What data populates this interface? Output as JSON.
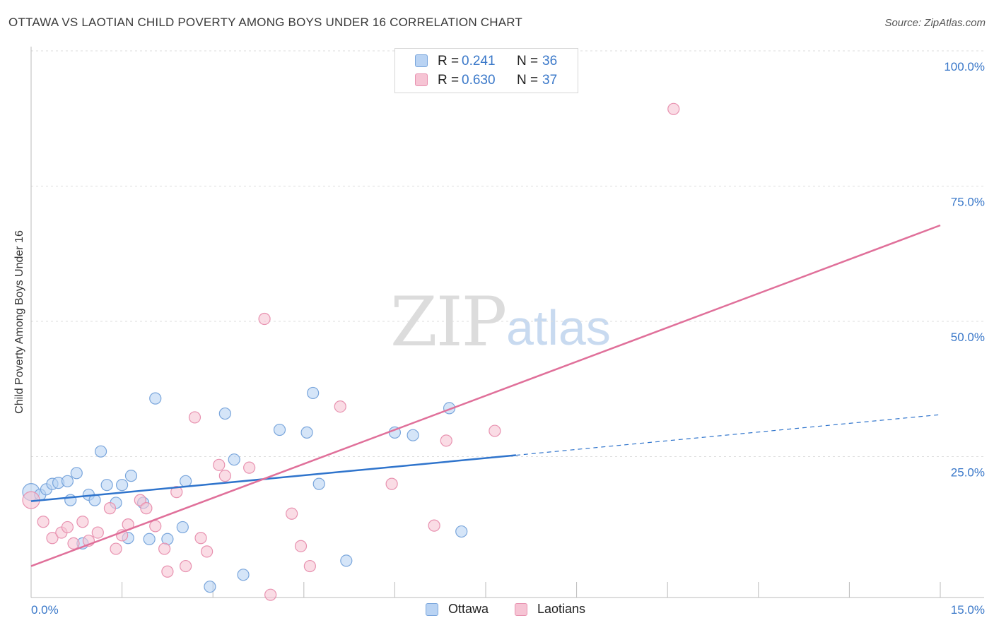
{
  "header": {
    "title": "OTTAWA VS LAOTIAN CHILD POVERTY AMONG BOYS UNDER 16 CORRELATION CHART",
    "source": "Source: ZipAtlas.com"
  },
  "watermark": {
    "zip": "ZIP",
    "atlas": "atlas"
  },
  "legend": {
    "r_label": "R =",
    "n_label": "N =",
    "ottawa": {
      "r": "0.241",
      "n": "36"
    },
    "laotians": {
      "r": "0.630",
      "n": "37"
    }
  },
  "colors": {
    "ottawa_fill": "#b9d3f3",
    "ottawa_stroke": "#7aa6dc",
    "ottawa_line": "#2f74cc",
    "laotians_fill": "#f6c4d4",
    "laotians_stroke": "#e892b0",
    "laotians_line": "#e0709a",
    "tick_label": "#3a78c9"
  },
  "chart_data": {
    "type": "scatter",
    "title": "OTTAWA VS LAOTIAN CHILD POVERTY AMONG BOYS UNDER 16 CORRELATION CHART",
    "xlabel": "",
    "ylabel": "Child Poverty Among Boys Under 16",
    "xlim": [
      0,
      15
    ],
    "ylim": [
      0,
      100
    ],
    "x_tick_labels": [
      "0.0%",
      "15.0%"
    ],
    "y_tick_labels": [
      "25.0%",
      "50.0%",
      "75.0%",
      "100.0%"
    ],
    "y_tick_values": [
      25,
      50,
      75,
      100
    ],
    "legend_position": "bottom-center",
    "series": [
      {
        "name": "Ottawa",
        "r": 0.241,
        "n": 36,
        "points": [
          [
            0.0,
            19.5
          ],
          [
            0.15,
            19.0
          ],
          [
            0.25,
            20.0
          ],
          [
            0.35,
            21.0
          ],
          [
            0.45,
            21.2
          ],
          [
            0.6,
            21.5
          ],
          [
            0.65,
            18.0
          ],
          [
            0.75,
            23.0
          ],
          [
            0.85,
            10.0
          ],
          [
            0.95,
            19.0
          ],
          [
            1.05,
            18.0
          ],
          [
            1.15,
            27.0
          ],
          [
            1.25,
            20.8
          ],
          [
            1.4,
            17.5
          ],
          [
            1.5,
            20.8
          ],
          [
            1.6,
            11.0
          ],
          [
            1.65,
            22.5
          ],
          [
            1.85,
            17.5
          ],
          [
            1.95,
            10.8
          ],
          [
            2.05,
            36.8
          ],
          [
            2.25,
            10.8
          ],
          [
            2.5,
            13.0
          ],
          [
            2.55,
            21.5
          ],
          [
            2.95,
            2.0
          ],
          [
            3.2,
            34.0
          ],
          [
            3.35,
            25.5
          ],
          [
            3.5,
            4.2
          ],
          [
            4.1,
            31.0
          ],
          [
            4.55,
            30.5
          ],
          [
            4.65,
            37.8
          ],
          [
            4.75,
            21.0
          ],
          [
            5.2,
            6.8
          ],
          [
            6.0,
            30.5
          ],
          [
            6.3,
            30.0
          ],
          [
            6.9,
            35.0
          ],
          [
            7.1,
            12.2
          ]
        ],
        "trend": {
          "x0": 0,
          "y0": 17.8,
          "x1": 8.0,
          "y1": 26.3,
          "dashed_to_x": 15.0,
          "dashed_to_y": 33.8
        }
      },
      {
        "name": "Laotians",
        "r": 0.63,
        "n": 37,
        "points": [
          [
            0.0,
            18.0
          ],
          [
            0.2,
            14.0
          ],
          [
            0.35,
            11.0
          ],
          [
            0.5,
            12.0
          ],
          [
            0.6,
            13.0
          ],
          [
            0.7,
            10.0
          ],
          [
            0.85,
            14.0
          ],
          [
            0.95,
            10.5
          ],
          [
            1.1,
            12.0
          ],
          [
            1.3,
            16.5
          ],
          [
            1.4,
            9.0
          ],
          [
            1.5,
            11.5
          ],
          [
            1.6,
            13.5
          ],
          [
            1.8,
            18.0
          ],
          [
            1.9,
            16.5
          ],
          [
            2.05,
            13.2
          ],
          [
            2.2,
            9.0
          ],
          [
            2.25,
            4.8
          ],
          [
            2.4,
            19.5
          ],
          [
            2.55,
            5.8
          ],
          [
            2.7,
            33.3
          ],
          [
            2.8,
            11.0
          ],
          [
            2.9,
            8.5
          ],
          [
            3.1,
            24.5
          ],
          [
            3.2,
            22.5
          ],
          [
            3.6,
            24.0
          ],
          [
            3.85,
            51.5
          ],
          [
            3.95,
            0.5
          ],
          [
            4.3,
            15.5
          ],
          [
            4.45,
            9.5
          ],
          [
            4.6,
            5.8
          ],
          [
            5.1,
            35.3
          ],
          [
            5.95,
            21.0
          ],
          [
            6.65,
            13.3
          ],
          [
            6.85,
            29.0
          ],
          [
            7.65,
            30.8
          ],
          [
            10.6,
            90.3
          ]
        ],
        "trend": {
          "x0": 0,
          "y0": 5.8,
          "x1": 15.0,
          "y1": 68.8
        }
      }
    ]
  }
}
